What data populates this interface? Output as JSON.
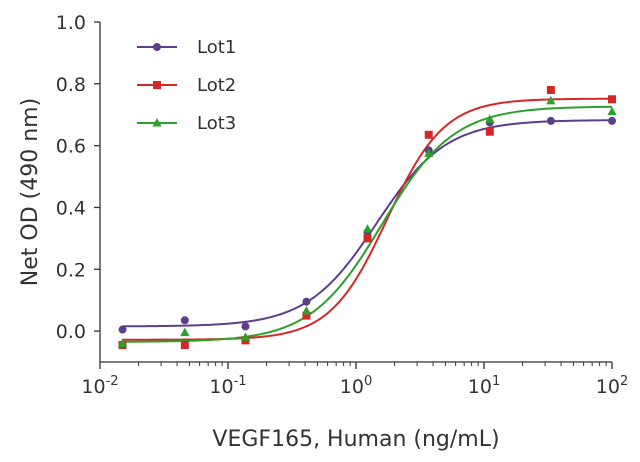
{
  "chart_data": {
    "type": "scatter",
    "xlabel": "VEGF165, Human (ng/mL)",
    "ylabel": "Net OD (490 nm)",
    "x_scale": "log",
    "xlim": [
      0.01,
      100
    ],
    "ylim": [
      -0.1,
      1.0
    ],
    "x_ticks": [
      {
        "value": 0.01,
        "base": "10",
        "exp": "-2"
      },
      {
        "value": 0.1,
        "base": "10",
        "exp": "-1"
      },
      {
        "value": 1,
        "base": "10",
        "exp": "0"
      },
      {
        "value": 10,
        "base": "10",
        "exp": "1"
      },
      {
        "value": 100,
        "base": "10",
        "exp": "2"
      }
    ],
    "y_ticks": [
      {
        "value": 0.0,
        "label": "0.0"
      },
      {
        "value": 0.2,
        "label": "0.2"
      },
      {
        "value": 0.4,
        "label": "0.4"
      },
      {
        "value": 0.6,
        "label": "0.6"
      },
      {
        "value": 0.8,
        "label": "0.8"
      },
      {
        "value": 1.0,
        "label": "1.0"
      }
    ],
    "grid": false,
    "legend_position": "top-left",
    "x": [
      0.015,
      0.046,
      0.137,
      0.41,
      1.23,
      3.7,
      11.1,
      33.3,
      100
    ],
    "series": [
      {
        "name": "Lot1",
        "color": "#5b3f8c",
        "marker": "circle",
        "values": [
          0.005,
          0.035,
          0.015,
          0.095,
          0.32,
          0.585,
          0.675,
          0.68,
          0.68
        ],
        "fit": {
          "bottom": 0.015,
          "top": 0.683,
          "ec50": 1.45,
          "hill": 1.6
        }
      },
      {
        "name": "Lot2",
        "color": "#d62728",
        "marker": "square",
        "values": [
          -0.045,
          -0.045,
          -0.03,
          0.05,
          0.3,
          0.635,
          0.645,
          0.78,
          0.75
        ],
        "fit": {
          "bottom": -0.028,
          "top": 0.752,
          "ec50": 1.75,
          "hill": 1.95
        }
      },
      {
        "name": "Lot3",
        "color": "#2ca02c",
        "marker": "triangle",
        "values": [
          -0.04,
          -0.005,
          -0.02,
          0.065,
          0.33,
          0.575,
          0.685,
          0.745,
          0.71
        ],
        "fit": {
          "bottom": -0.035,
          "top": 0.727,
          "ec50": 1.6,
          "hill": 1.55
        }
      }
    ]
  }
}
